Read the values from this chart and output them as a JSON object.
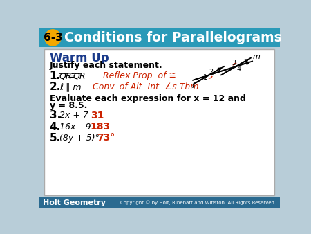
{
  "title_badge": "6-3",
  "title_text": "Conditions for Parallelograms",
  "header_bg_left": "#1a6090",
  "header_bg_right": "#4ab8cc",
  "badge_bg": "#f5a800",
  "warm_up": "Warm Up",
  "warm_up_color": "#1a3a8a",
  "justify_text": "Justify each statement.",
  "item1_answer": "Reflex Prop. of ≅",
  "item2_math": "ℓ ∥ m",
  "item2_answer": "Conv. of Alt. Int. ∠s Thm.",
  "evaluate_line1": "Evaluate each expression for x = 12 and",
  "evaluate_line2": "y = 8.5.",
  "item3_expr": "2x + 7",
  "item3_ans": "31",
  "item4_expr": "16x – 9",
  "item4_ans": "183",
  "item5_expr": "(8y + 5)°",
  "item5_ans": "73°",
  "answer_color": "#cc2200",
  "footer_bg": "#1a6090",
  "footer_left": "Holt Geometry",
  "footer_right": "Copyright © by Holt, Rinehart and Winston. All Rights Reserved.",
  "content_bg": "#ffffff",
  "outer_bg": "#b8cdd8",
  "border_color": "#999999"
}
